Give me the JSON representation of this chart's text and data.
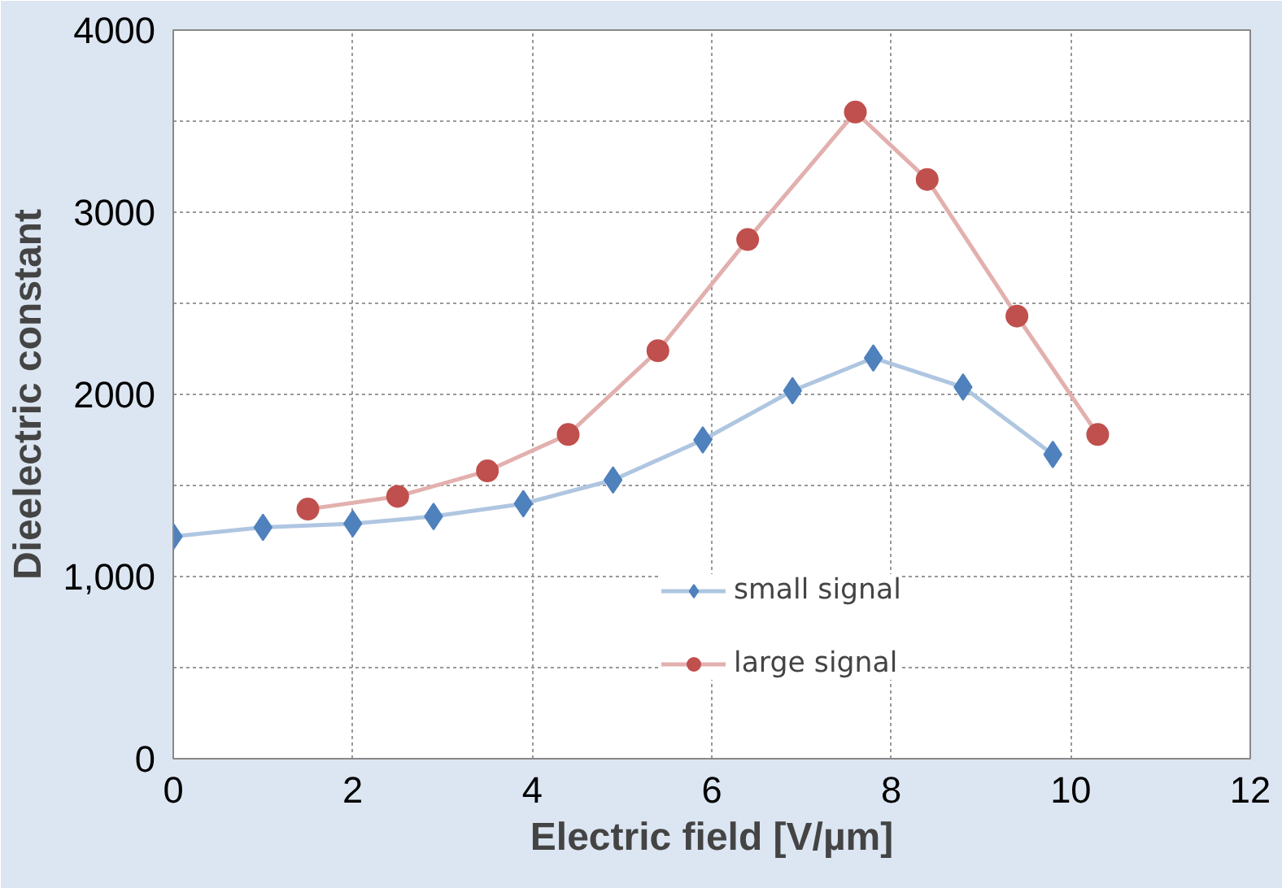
{
  "chart_data": {
    "type": "line",
    "xlabel": "Electric field [V/µm]",
    "ylabel": "Dieelectric constant",
    "xlim": [
      0,
      12
    ],
    "xticks": [
      0,
      2,
      4,
      6,
      8,
      10,
      12
    ],
    "ylim": [
      0,
      4000
    ],
    "yticks": [
      0,
      {
        "value": 500,
        "label": null
      },
      {
        "value": 1000,
        "label": "1,000"
      },
      {
        "value": 1500,
        "label": null
      },
      2000,
      {
        "value": 2500,
        "label": null
      },
      3000,
      {
        "value": 3500,
        "label": null
      },
      4000
    ],
    "grid": true,
    "legend": "bottom right",
    "series": [
      {
        "name": "small signal",
        "color": "#4f81bd",
        "marker": "diamond",
        "x": [
          0,
          1,
          2,
          2.9,
          3.9,
          4.9,
          5.9,
          6.9,
          7.8,
          8.8,
          9.8
        ],
        "values": [
          1220,
          1270,
          1290,
          1330,
          1400,
          1530,
          1750,
          2020,
          2200,
          2040,
          1670
        ]
      },
      {
        "name": "large signal",
        "color": "#c0504d",
        "marker": "circle",
        "x": [
          1.5,
          2.5,
          3.5,
          4.4,
          5.4,
          6.4,
          7.6,
          8.4,
          9.4,
          10.3
        ],
        "values": [
          1370,
          1440,
          1580,
          1780,
          2240,
          2850,
          3550,
          3180,
          2430,
          1780
        ]
      }
    ]
  }
}
